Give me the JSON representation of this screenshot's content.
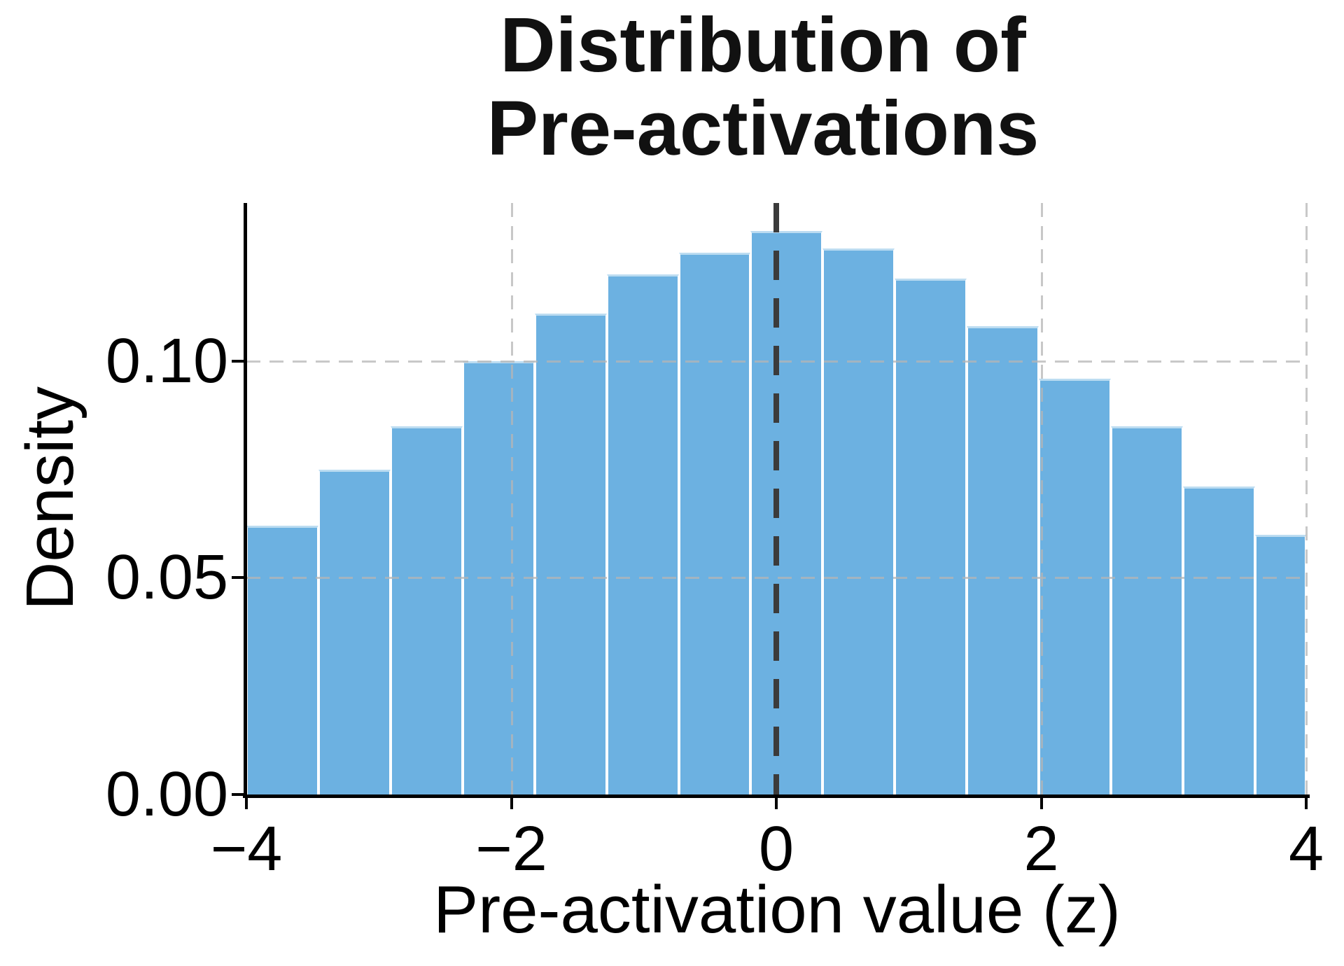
{
  "chart_data": {
    "type": "histogram",
    "title": "Distribution of\nPre-activations",
    "xlabel": "Pre-activation value (z)",
    "ylabel": "Density",
    "bin_edges": [
      -4.0,
      -3.456,
      -2.912,
      -2.368,
      -1.824,
      -1.281,
      -0.737,
      -0.193,
      0.351,
      0.895,
      1.439,
      1.983,
      2.527,
      3.071,
      3.615,
      4.158
    ],
    "densities": [
      0.062,
      0.075,
      0.085,
      0.1,
      0.111,
      0.12,
      0.125,
      0.13,
      0.126,
      0.119,
      0.108,
      0.096,
      0.085,
      0.071,
      0.06
    ],
    "xlim": [
      -4,
      4
    ],
    "ylim": [
      0,
      0.1365
    ],
    "xticks": [
      {
        "v": -4,
        "label": "−4"
      },
      {
        "v": -2,
        "label": "−2"
      },
      {
        "v": 0,
        "label": "0"
      },
      {
        "v": 2,
        "label": "2"
      },
      {
        "v": 4,
        "label": "4"
      }
    ],
    "yticks": [
      {
        "v": 0.0,
        "label": "0.00"
      },
      {
        "v": 0.05,
        "label": "0.05"
      },
      {
        "v": 0.1,
        "label": "0.10"
      }
    ],
    "grid_x": [
      -2,
      2,
      4
    ],
    "grid_y": [
      0.05,
      0.1
    ],
    "vline_x": 0,
    "grid_on": true,
    "legend": "none",
    "colors": {
      "bar_fill": "#6CB1E1",
      "bar_edge": "#FFFFFF",
      "vline": "#3B3B3B",
      "grid": "#B5B5B5",
      "spine": "#000000",
      "text": "#000000"
    }
  }
}
